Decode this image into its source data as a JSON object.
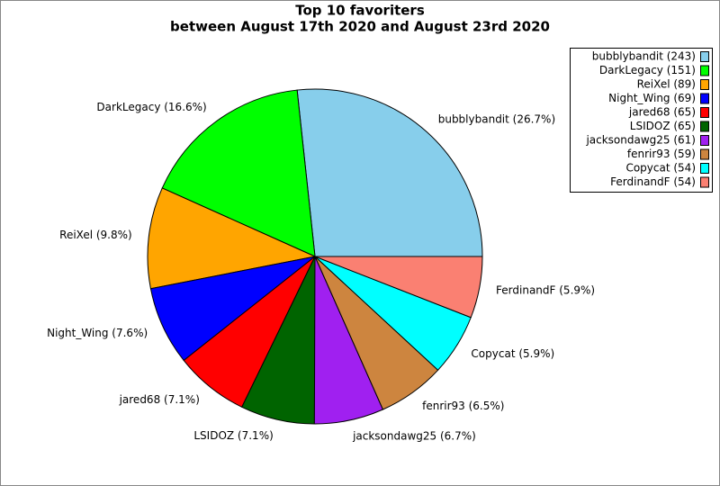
{
  "chart_data": {
    "type": "pie",
    "title": "Top 10 favoriters",
    "subtitle": "between August 17th 2020 and August 23rd 2020",
    "categories": [
      "bubblybandit",
      "DarkLegacy",
      "ReiXel",
      "Night_Wing",
      "jared68",
      "LSIDOZ",
      "jacksondawg25",
      "fenrir93",
      "Copycat",
      "FerdinandF"
    ],
    "values": [
      243,
      151,
      89,
      69,
      65,
      65,
      61,
      59,
      54,
      54
    ],
    "value_labels": [
      "bubblybandit (26.7%)",
      "DarkLegacy (16.6%)",
      "ReiXel (9.8%)",
      "Night_Wing (7.6%)",
      "jared68 (7.1%)",
      "LSIDOZ (7.1%)",
      "jacksondawg25 (6.7%)",
      "fenrir93 (6.5%)",
      "Copycat (5.9%)",
      "FerdinandF (5.9%)"
    ],
    "legend_labels": [
      "bubblybandit (243)",
      "DarkLegacy (151)",
      "ReiXel (89)",
      "Night_Wing (69)",
      "jared68 (65)",
      "LSIDOZ (65)",
      "jacksondawg25 (61)",
      "fenrir93 (59)",
      "Copycat (54)",
      "FerdinandF (54)"
    ],
    "colors": [
      "#87ceeb",
      "#00ff00",
      "#ffa500",
      "#0000ff",
      "#ff0000",
      "#006400",
      "#a020f0",
      "#cd853f",
      "#00ffff",
      "#fa8072"
    ],
    "legend": "upper right"
  }
}
